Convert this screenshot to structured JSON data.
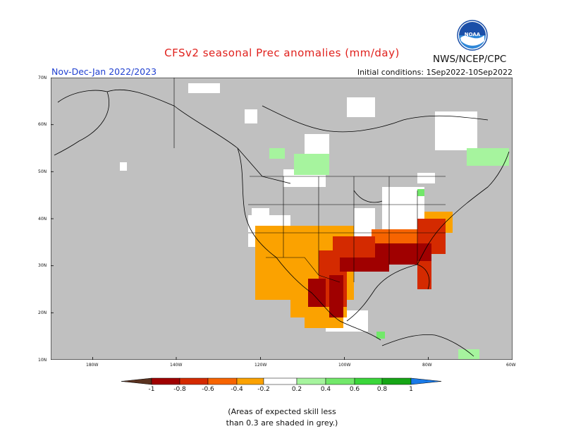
{
  "title": "CFSv2 seasonal Prec anomalies (mm/day)",
  "period": "Nov-Dec-Jan 2022/2023",
  "initial_conditions": "Initial conditions: 1Sep2022-10Sep2022",
  "agency": "NWS/NCEP/CPC",
  "logo": {
    "text": "NOAA",
    "icon": "noaa-logo-icon"
  },
  "map": {
    "lat_labels": [
      "70N",
      "60N",
      "50N",
      "40N",
      "30N",
      "20N",
      "10N"
    ],
    "lon_labels": [
      "180W",
      "140W",
      "120W",
      "100W",
      "80W",
      "60W"
    ],
    "colors": {
      "grey_low_skill": "#c0c0c0",
      "neutral": "#ffffff",
      "dry_-0.2_-0.4": "#fba200",
      "dry_-0.4_-0.6": "#f76400",
      "dry_-0.6_-0.8": "#d42a00",
      "dry_-0.8_-1": "#a00000",
      "wet_0.2_0.4": "#a6f49e",
      "wet_0.4_0.6": "#72e86a",
      "ocean_line": "#000000"
    }
  },
  "colorbar": {
    "tick_labels": [
      "-1",
      "-0.8",
      "-0.6",
      "-0.4",
      "-0.2",
      "0.2",
      "0.4",
      "0.6",
      "0.8",
      "1"
    ],
    "colors": [
      "#5a3220",
      "#a00000",
      "#d42a00",
      "#f76400",
      "#fba200",
      "#ffffff",
      "#a6f49e",
      "#72e86a",
      "#3ad63a",
      "#16a616",
      "#1a7ae8"
    ]
  },
  "note": {
    "line1": "(Areas of expected skill less",
    "line2": "than 0.3 are shaded in grey.)"
  }
}
